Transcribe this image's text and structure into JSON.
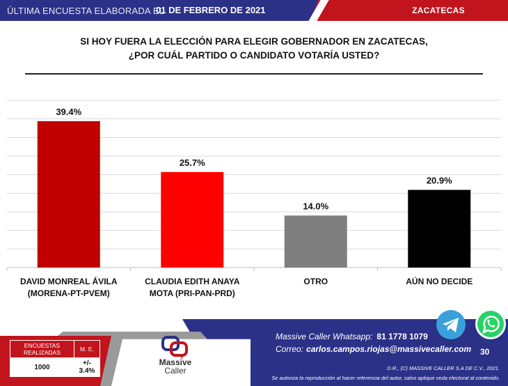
{
  "header": {
    "prefix": "ÚLTIMA ENCUESTA ELABORADA EL",
    "date": "01 DE FEBRERO DE 2021",
    "state": "ZACATECAS",
    "colors": {
      "blue": "#2b3187",
      "red": "#c1141d"
    }
  },
  "question": {
    "line1": "SI HOY FUERA LA ELECCIÓN PARA ELEGIR GOBERNADOR EN ZACATECAS,",
    "line2": "¿POR CUÁL PARTIDO O CANDIDATO VOTARÍA USTED?"
  },
  "chart_data": {
    "type": "bar",
    "categories": [
      [
        "DAVID MONREAL ÁVILA",
        "(MORENA-PT-PVEM)"
      ],
      [
        "CLAUDIA EDITH ANAYA",
        "MOTA (PRI-PAN-PRD)"
      ],
      [
        "OTRO"
      ],
      [
        "AÚN NO DECIDE"
      ]
    ],
    "values": [
      39.4,
      25.7,
      14.0,
      20.9
    ],
    "value_labels": [
      "39.4%",
      "25.7%",
      "14.0%",
      "20.9%"
    ],
    "colors": [
      "#c00000",
      "#ff0000",
      "#7f7f7f",
      "#000000"
    ],
    "ylim": [
      0,
      45
    ],
    "grid": true,
    "title": "",
    "xlabel": "",
    "ylabel": ""
  },
  "stats": {
    "label1": "ENCUESTAS REALIZADAS",
    "label2": "M. E.",
    "value1": "1000",
    "value2": "+/- 3.4%"
  },
  "logo": {
    "line1": "Massive",
    "line2": "Caller"
  },
  "contact": {
    "whatsapp_label": "Massive Caller Whatsapp:",
    "whatsapp_number": "81 1778 1079",
    "email_label": "Correo:",
    "email": "carlos.campos.riojas@massivecaller.com",
    "page": "30"
  },
  "copyright": {
    "line1": "D.R., (C) MASSIVE CALLER S.A DE C.V., 2021.",
    "line2": "Se autoriza la reproducción al hacer referencia del autor, salvo aplique veda electoral al contenido."
  },
  "icons": {
    "telegram": "telegram-icon",
    "whatsapp": "whatsapp-icon"
  }
}
